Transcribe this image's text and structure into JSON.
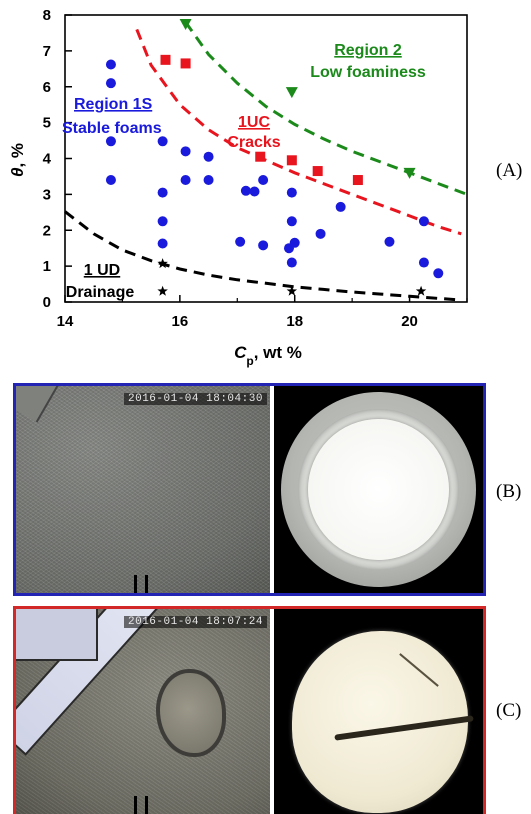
{
  "chart_data": {
    "type": "scatter",
    "xlabel": "C",
    "xlabel_sub": "p",
    "xlabel_unit": ", wt %",
    "ylabel_symbol": "θ",
    "ylabel_unit": ", %",
    "xlim": [
      14,
      21
    ],
    "ylim": [
      0,
      8
    ],
    "xticks": [
      "14",
      "16",
      "18",
      "20"
    ],
    "yticks": [
      "0",
      "1",
      "2",
      "3",
      "4",
      "5",
      "6",
      "7",
      "8"
    ],
    "grid": false,
    "series": [
      {
        "marker": "circle",
        "color": "#1a1adc",
        "points": [
          [
            14.8,
            6.62
          ],
          [
            14.8,
            6.1
          ],
          [
            14.8,
            4.48
          ],
          [
            14.8,
            3.4
          ],
          [
            15.7,
            4.48
          ],
          [
            15.7,
            3.05
          ],
          [
            15.7,
            2.25
          ],
          [
            15.7,
            1.63
          ],
          [
            16.1,
            4.2
          ],
          [
            16.1,
            3.4
          ],
          [
            16.5,
            4.05
          ],
          [
            16.5,
            3.4
          ],
          [
            17.05,
            1.68
          ],
          [
            17.15,
            3.1
          ],
          [
            17.3,
            3.08
          ],
          [
            17.45,
            3.4
          ],
          [
            17.45,
            1.58
          ],
          [
            17.9,
            1.5
          ],
          [
            17.95,
            3.05
          ],
          [
            17.95,
            2.25
          ],
          [
            18.0,
            1.65
          ],
          [
            17.95,
            1.1
          ],
          [
            18.45,
            1.9
          ],
          [
            18.8,
            2.65
          ],
          [
            19.65,
            1.68
          ],
          [
            20.25,
            2.25
          ],
          [
            20.25,
            1.1
          ],
          [
            20.5,
            0.8
          ]
        ]
      },
      {
        "marker": "square",
        "color": "#e8141e",
        "points": [
          [
            15.75,
            6.75
          ],
          [
            16.1,
            6.65
          ],
          [
            17.4,
            4.05
          ],
          [
            17.95,
            3.95
          ],
          [
            18.4,
            3.65
          ],
          [
            19.1,
            3.4
          ]
        ]
      },
      {
        "marker": "triangle-down",
        "color": "#1b8a1b",
        "points": [
          [
            16.1,
            7.75
          ],
          [
            17.95,
            5.85
          ],
          [
            20.0,
            3.6
          ]
        ]
      },
      {
        "marker": "star",
        "color": "#000000",
        "points": [
          [
            15.7,
            1.07
          ],
          [
            15.7,
            0.3
          ],
          [
            17.95,
            0.3
          ],
          [
            20.2,
            0.3
          ]
        ]
      }
    ],
    "curves": [
      {
        "color": "#1b8a1b",
        "x": [
          16.1,
          16.5,
          17,
          17.5,
          18,
          18.5,
          19,
          19.5,
          20,
          20.5,
          21
        ],
        "y": [
          7.8,
          6.9,
          6.1,
          5.45,
          4.95,
          4.55,
          4.2,
          3.9,
          3.6,
          3.3,
          3.0
        ]
      },
      {
        "color": "#e8141e",
        "x": [
          15.25,
          15.5,
          16,
          16.5,
          17,
          17.5,
          18,
          18.5,
          19,
          19.5,
          20,
          20.5,
          20.9
        ],
        "y": [
          7.6,
          6.6,
          5.5,
          4.8,
          4.3,
          3.95,
          3.6,
          3.3,
          3.0,
          2.7,
          2.4,
          2.1,
          1.9
        ]
      },
      {
        "color": "#000000",
        "x": [
          14,
          14.5,
          15,
          15.5,
          16,
          16.5,
          17,
          17.5,
          18,
          18.5,
          19,
          19.5,
          20,
          20.5,
          20.85
        ],
        "y": [
          2.52,
          1.9,
          1.45,
          1.15,
          0.92,
          0.75,
          0.62,
          0.52,
          0.42,
          0.35,
          0.28,
          0.22,
          0.16,
          0.1,
          0.06
        ]
      }
    ],
    "annotations": [
      {
        "text": "Region 1S",
        "color": "#1a1adc",
        "underline": true
      },
      {
        "text": "Stable foams",
        "color": "#1a1adc",
        "underline": false
      },
      {
        "text": "1UC",
        "color": "#e8141e",
        "underline": true
      },
      {
        "text": "Cracks",
        "color": "#e8141e",
        "underline": false
      },
      {
        "text": "Region 2",
        "color": "#1b8a1b",
        "underline": true
      },
      {
        "text": "Low foaminess",
        "color": "#1b8a1b",
        "underline": false
      },
      {
        "text": "1 UD",
        "color": "#000000",
        "underline": true
      },
      {
        "text": "Drainage",
        "color": "#000000",
        "underline": false
      }
    ]
  },
  "panels": {
    "a_label": "(A)",
    "b_label": "(B)",
    "c_label": "(C)",
    "b_stamp": "2016-01-04 18:04:30",
    "c_stamp": "2016-01-04 18:07:24",
    "b_border_color": "#2323b4",
    "c_border_color": "#d22828"
  }
}
